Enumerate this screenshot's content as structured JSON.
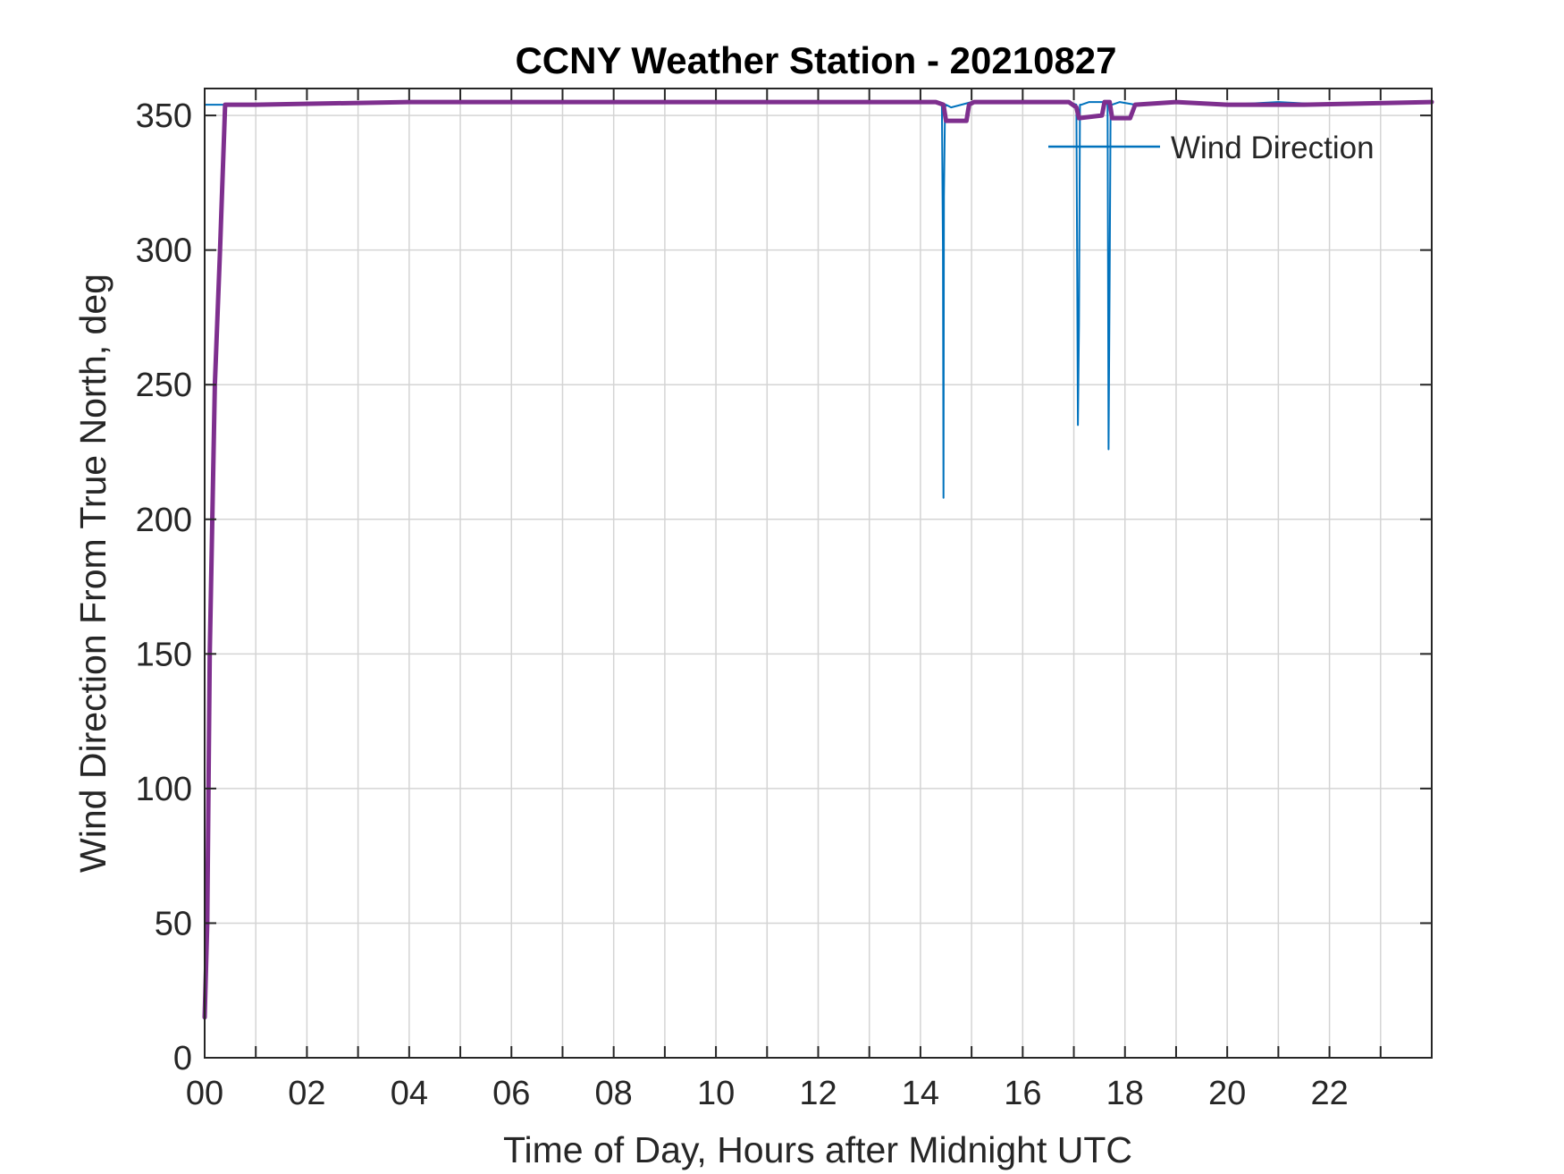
{
  "chart_data": {
    "type": "line",
    "title": "CCNY Weather Station - 20210827",
    "xlabel": "Time of Day, Hours after Midnight UTC",
    "ylabel": "Wind Direction From True North, deg",
    "xlim": [
      0,
      24
    ],
    "ylim": [
      0,
      360
    ],
    "x_ticks": [
      0,
      2,
      4,
      6,
      8,
      10,
      12,
      14,
      16,
      18,
      20,
      22
    ],
    "x_tick_labels": [
      "00",
      "02",
      "04",
      "06",
      "08",
      "10",
      "12",
      "14",
      "16",
      "18",
      "20",
      "22"
    ],
    "y_ticks": [
      0,
      50,
      100,
      150,
      200,
      250,
      300,
      350
    ],
    "y_tick_labels": [
      "0",
      "50",
      "100",
      "150",
      "200",
      "250",
      "300",
      "350"
    ],
    "grid": true,
    "legend_position": "top-right",
    "series": [
      {
        "name": "Wind Direction",
        "color": "#0072BD",
        "style": "raw",
        "x": [
          0,
          0.02,
          0.05,
          0.1,
          0.15,
          0.2,
          0.25,
          0.3,
          0.35,
          0.4,
          1,
          2,
          4,
          6,
          8,
          10,
          12,
          14,
          14.35,
          14.42,
          14.44,
          14.45,
          14.46,
          14.48,
          14.5,
          14.6,
          14.8,
          15,
          16,
          16.9,
          17.05,
          17.08,
          17.1,
          17.12,
          17.15,
          17.3,
          17.6,
          17.66,
          17.68,
          17.7,
          17.72,
          17.75,
          17.9,
          18.2,
          19,
          20,
          21,
          22,
          23,
          24
        ],
        "y": [
          354,
          354,
          354,
          354,
          354,
          354,
          354,
          354,
          354,
          354,
          354,
          354,
          355,
          355,
          355,
          355,
          355,
          355,
          355,
          354,
          300,
          208,
          320,
          353,
          354,
          353,
          354,
          355,
          355,
          355,
          354,
          235,
          272,
          354,
          354,
          355,
          355,
          354,
          226,
          288,
          354,
          354,
          355,
          354,
          355,
          354,
          355,
          354,
          355,
          355
        ]
      },
      {
        "name": "",
        "color": "#7E2F8E",
        "style": "smoothed",
        "x": [
          0,
          0.05,
          0.1,
          0.2,
          0.3,
          0.4,
          1,
          4,
          8,
          12,
          14.3,
          14.45,
          14.5,
          14.9,
          14.95,
          15.05,
          16,
          16.9,
          17.05,
          17.1,
          17.55,
          17.6,
          17.7,
          17.75,
          18.1,
          18.2,
          19,
          20,
          21.5,
          24
        ],
        "y": [
          15,
          50,
          150,
          250,
          300,
          354,
          354,
          355,
          355,
          355,
          355,
          354,
          348,
          348,
          354,
          355,
          355,
          355,
          353,
          349,
          350,
          355,
          355,
          349,
          349,
          354,
          355,
          354,
          354,
          355
        ]
      }
    ]
  }
}
